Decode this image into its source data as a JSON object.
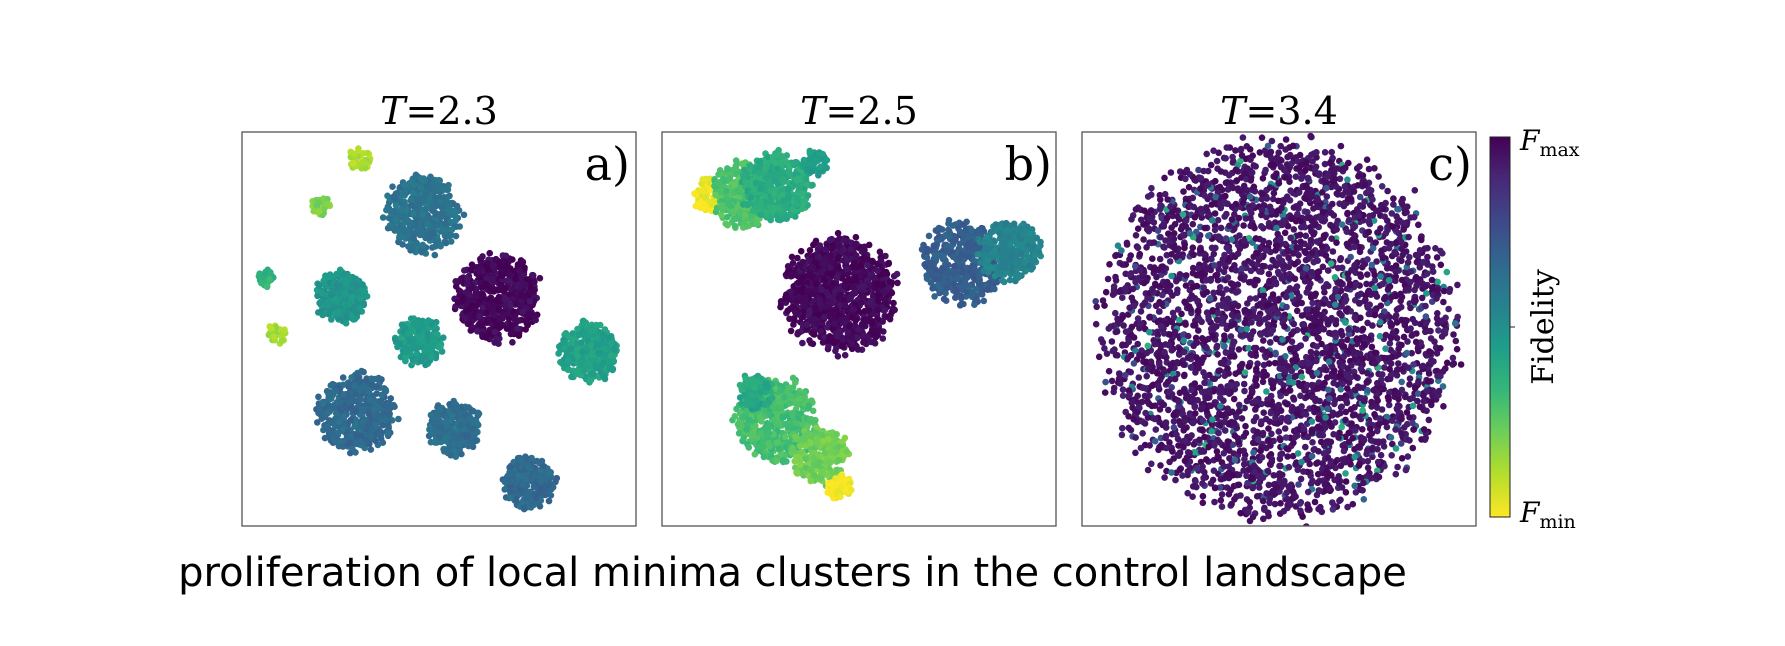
{
  "chart_data": [
    {
      "type": "scatter",
      "title_var": "T",
      "title_value": "=2.3",
      "panel_label": "a)",
      "xlabel": "",
      "ylabel": "",
      "clusters": [
        {
          "cx": 0.3,
          "cy": 0.93,
          "r": 0.03,
          "n": 40,
          "fidelity": 0.12
        },
        {
          "cx": 0.46,
          "cy": 0.79,
          "r": 0.095,
          "n": 450,
          "fidelity": 0.62
        },
        {
          "cx": 0.2,
          "cy": 0.81,
          "r": 0.024,
          "n": 30,
          "fidelity": 0.2
        },
        {
          "cx": 0.06,
          "cy": 0.63,
          "r": 0.022,
          "n": 28,
          "fidelity": 0.35
        },
        {
          "cx": 0.25,
          "cy": 0.58,
          "r": 0.062,
          "n": 260,
          "fidelity": 0.48
        },
        {
          "cx": 0.65,
          "cy": 0.58,
          "r": 0.105,
          "n": 550,
          "fidelity": 0.98
        },
        {
          "cx": 0.09,
          "cy": 0.49,
          "r": 0.026,
          "n": 32,
          "fidelity": 0.14
        },
        {
          "cx": 0.45,
          "cy": 0.47,
          "r": 0.058,
          "n": 220,
          "fidelity": 0.45
        },
        {
          "cx": 0.88,
          "cy": 0.44,
          "r": 0.072,
          "n": 320,
          "fidelity": 0.43
        },
        {
          "cx": 0.29,
          "cy": 0.29,
          "r": 0.095,
          "n": 460,
          "fidelity": 0.66
        },
        {
          "cx": 0.54,
          "cy": 0.25,
          "r": 0.065,
          "n": 270,
          "fidelity": 0.64
        },
        {
          "cx": 0.73,
          "cy": 0.11,
          "r": 0.064,
          "n": 260,
          "fidelity": 0.66
        }
      ]
    },
    {
      "type": "scatter",
      "title_var": "T",
      "title_value": "=2.5",
      "panel_label": "b)",
      "xlabel": "",
      "ylabel": "",
      "clusters": [
        {
          "cx": 0.12,
          "cy": 0.84,
          "r": 0.04,
          "n": 80,
          "fidelity": 0.02
        },
        {
          "cx": 0.21,
          "cy": 0.84,
          "r": 0.08,
          "n": 360,
          "fidelity": 0.28
        },
        {
          "cx": 0.29,
          "cy": 0.86,
          "r": 0.085,
          "n": 380,
          "fidelity": 0.38
        },
        {
          "cx": 0.39,
          "cy": 0.92,
          "r": 0.035,
          "n": 60,
          "fidelity": 0.45
        },
        {
          "cx": 0.45,
          "cy": 0.59,
          "r": 0.14,
          "n": 950,
          "fidelity": 0.98
        },
        {
          "cx": 0.76,
          "cy": 0.67,
          "r": 0.1,
          "n": 430,
          "fidelity": 0.7
        },
        {
          "cx": 0.88,
          "cy": 0.7,
          "r": 0.075,
          "n": 300,
          "fidelity": 0.55
        },
        {
          "cx": 0.29,
          "cy": 0.27,
          "r": 0.1,
          "n": 520,
          "fidelity": 0.3
        },
        {
          "cx": 0.4,
          "cy": 0.18,
          "r": 0.07,
          "n": 260,
          "fidelity": 0.22
        },
        {
          "cx": 0.24,
          "cy": 0.34,
          "r": 0.045,
          "n": 90,
          "fidelity": 0.4
        },
        {
          "cx": 0.45,
          "cy": 0.1,
          "r": 0.03,
          "n": 70,
          "fidelity": 0.01
        }
      ]
    },
    {
      "type": "scatter",
      "title_var": "T",
      "title_value": "=3.4",
      "panel_label": "c)",
      "xlabel": "",
      "ylabel": "",
      "clusters": [
        {
          "cx": 0.5,
          "cy": 0.5,
          "r": 0.44,
          "n": 3600,
          "fidelity": 0.95,
          "spread": "uniform",
          "noise": 0.07
        }
      ]
    }
  ],
  "colorbar": {
    "label": "Fidelity",
    "top_var": "F",
    "top_sub": "max",
    "bottom_var": "F",
    "bottom_sub": "min",
    "colors": [
      "#fde725",
      "#b5de2b",
      "#6ece58",
      "#35b779",
      "#1f9e89",
      "#26828e",
      "#31688e",
      "#3e4989",
      "#482878",
      "#440154"
    ]
  },
  "caption": "proliferation of local minima clusters in the control landscape"
}
